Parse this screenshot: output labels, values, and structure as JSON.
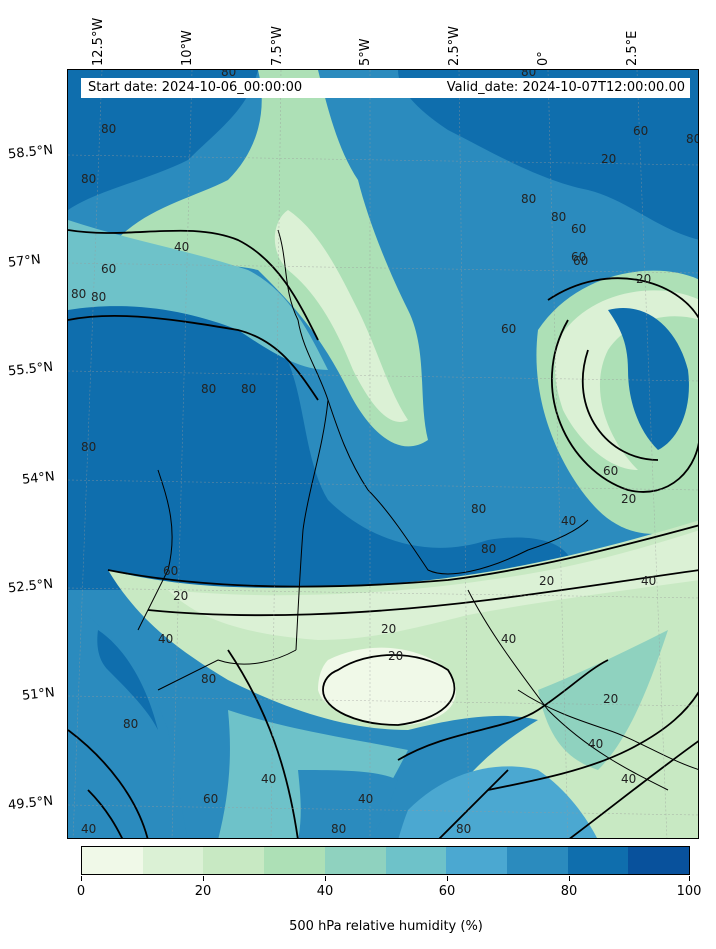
{
  "map": {
    "lon_labels": [
      "12.5°W",
      "10°W",
      "7.5°W",
      "5°W",
      "2.5°W",
      "0°",
      "2.5°E"
    ],
    "lat_labels": [
      "58.5°N",
      "57°N",
      "55.5°N",
      "54°N",
      "52.5°N",
      "51°N",
      "49.5°N"
    ],
    "start_date": "Start date: 2024-10-06_00:00:00",
    "valid_date": "Valid_date: 2024-10-07T12:00:00.00",
    "contour_labels": [
      "80",
      "80",
      "80",
      "40",
      "60",
      "80",
      "80",
      "60",
      "20",
      "80",
      "80",
      "80",
      "80",
      "60",
      "80",
      "60",
      "60",
      "60",
      "20",
      "60",
      "80",
      "20",
      "40",
      "80",
      "80",
      "80",
      "60",
      "20",
      "20",
      "40",
      "40",
      "40",
      "40",
      "20",
      "20",
      "80",
      "80",
      "40",
      "40",
      "60",
      "80",
      "40",
      "80",
      "40",
      "20"
    ],
    "colorbar": {
      "label": "500 hPa relative humidity (%)",
      "ticks": [
        "0",
        "20",
        "40",
        "60",
        "80",
        "100"
      ],
      "colors": [
        "#f0f9e8",
        "#dbf1d5",
        "#c8e9c3",
        "#ade0b6",
        "#8fd2bf",
        "#6ec2c9",
        "#4ba8d1",
        "#2b8bbe",
        "#0f6ead",
        "#08519c"
      ]
    }
  }
}
